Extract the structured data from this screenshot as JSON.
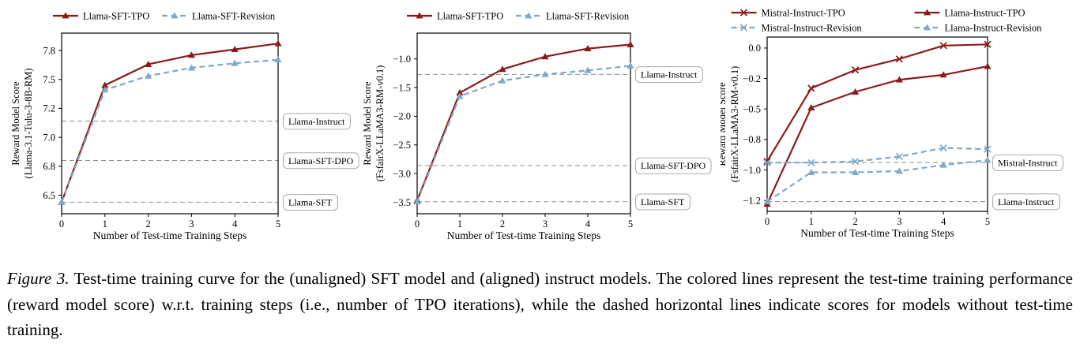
{
  "figure": {
    "caption_label": "Figure 3.",
    "caption_text": "Test-time training curve for the (unaligned) SFT model and (aligned) instruct models. The colored lines represent the test-time training performance (reward model score) w.r.t. training steps (i.e., number of TPO iterations), while the dashed horizontal lines indicate scores for models without test-time training."
  },
  "colors": {
    "tpo_red": "#8b1b1b",
    "revision_blue": "#7fa8c9",
    "baseline_gray": "#8f8f8f",
    "box_border": "#aaaaaa",
    "axis": "#000000"
  },
  "chart_data": [
    {
      "type": "line",
      "title": "",
      "xlabel": "Number of Test-time Training Steps",
      "ylabel_line1": "Reward Model Score",
      "ylabel_line2": "(Llama-3.1-Tulu-3-8B-RM)",
      "x": [
        0,
        1,
        2,
        3,
        4,
        5
      ],
      "xtick_labels": [
        "0",
        "1",
        "2",
        "3",
        "4",
        "5"
      ],
      "xlim": [
        0,
        5
      ],
      "ylim": [
        6.34,
        7.9
      ],
      "yticks": {
        "values": [
          7.75,
          7.5,
          7.25,
          7.0,
          6.75,
          6.5
        ],
        "labels": [
          "7.8",
          "7.5",
          "7.2",
          "7.0",
          "6.8",
          "6.5"
        ]
      },
      "grid": false,
      "legend_position": "above",
      "series": [
        {
          "name": "Llama-SFT-TPO",
          "color": "red",
          "style": "solid",
          "marker": "triangle",
          "values": [
            6.44,
            7.45,
            7.63,
            7.71,
            7.76,
            7.81
          ]
        },
        {
          "name": "Llama-SFT-Revision",
          "color": "blue",
          "style": "dashed",
          "marker": "triangle",
          "values": [
            6.44,
            7.41,
            7.53,
            7.6,
            7.64,
            7.67
          ]
        }
      ],
      "baselines": [
        {
          "label": "Llama-Instruct",
          "value": 7.14
        },
        {
          "label": "Llama-SFT-DPO",
          "value": 6.8
        },
        {
          "label": "Llama-SFT",
          "value": 6.44
        }
      ]
    },
    {
      "type": "line",
      "title": "",
      "xlabel": "Number of Test-time Training Steps",
      "ylabel_line1": "Reward Model Score",
      "ylabel_line2": "(FsfairX-LLaMA3-RM-v0.1)",
      "x": [
        0,
        1,
        2,
        3,
        4,
        5
      ],
      "xtick_labels": [
        "0",
        "1",
        "2",
        "3",
        "4",
        "5"
      ],
      "xlim": [
        0,
        5
      ],
      "ylim": [
        -3.7,
        -0.55
      ],
      "yticks": {
        "values": [
          -1.0,
          -1.5,
          -2.0,
          -2.5,
          -3.0,
          -3.5
        ],
        "labels": [
          "−1.0",
          "−1.5",
          "−2.0",
          "−2.5",
          "−3.0",
          "−3.5"
        ]
      },
      "grid": false,
      "legend_position": "above",
      "series": [
        {
          "name": "Llama-SFT-TPO",
          "color": "red",
          "style": "solid",
          "marker": "triangle",
          "values": [
            -3.47,
            -1.59,
            -1.18,
            -0.96,
            -0.82,
            -0.75
          ]
        },
        {
          "name": "Llama-SFT-Revision",
          "color": "blue",
          "style": "dashed",
          "marker": "triangle",
          "values": [
            -3.49,
            -1.65,
            -1.38,
            -1.27,
            -1.2,
            -1.12
          ]
        }
      ],
      "baselines": [
        {
          "label": "Llama-Instruct",
          "value": -1.27
        },
        {
          "label": "Llama-SFT-DPO",
          "value": -2.86
        },
        {
          "label": "Llama-SFT",
          "value": -3.49
        }
      ]
    },
    {
      "type": "line",
      "title": "",
      "xlabel": "Number of Test-time Training Steps",
      "ylabel_line1": "Reward Model Score",
      "ylabel_line2": "(FsfairX-LLaMA3-RM-v0.1)",
      "x": [
        0,
        1,
        2,
        3,
        4,
        5
      ],
      "xtick_labels": [
        "0",
        "1",
        "2",
        "3",
        "4",
        "5"
      ],
      "xlim": [
        0,
        5
      ],
      "ylim": [
        -1.34,
        0.09
      ],
      "yticks": {
        "values": [
          0.0,
          -0.25,
          -0.5,
          -0.75,
          -1.0,
          -1.25
        ],
        "labels": [
          "0.0",
          "−0.2",
          "−0.5",
          "−0.8",
          "−1.0",
          "−1.2"
        ]
      },
      "grid": false,
      "legend_position": "above",
      "series": [
        {
          "name": "Mistral-Instruct-TPO",
          "color": "red",
          "style": "solid",
          "marker": "x",
          "values": [
            -0.93,
            -0.33,
            -0.18,
            -0.09,
            0.02,
            0.03
          ]
        },
        {
          "name": "Llama-Instruct-TPO",
          "color": "red",
          "style": "solid",
          "marker": "triangle",
          "values": [
            -1.28,
            -0.49,
            -0.36,
            -0.26,
            -0.22,
            -0.15
          ]
        },
        {
          "name": "Mistral-Instruct-Revision",
          "color": "blue",
          "style": "dashed",
          "marker": "x",
          "values": [
            -0.94,
            -0.94,
            -0.93,
            -0.89,
            -0.82,
            -0.83
          ]
        },
        {
          "name": "Llama-Instruct-Revision",
          "color": "blue",
          "style": "dashed",
          "marker": "triangle",
          "values": [
            -1.26,
            -1.02,
            -1.02,
            -1.01,
            -0.96,
            -0.92
          ]
        }
      ],
      "baselines": [
        {
          "label": "Mistral-Instruct",
          "value": -0.94
        },
        {
          "label": "Llama-Instruct",
          "value": -1.26
        }
      ]
    }
  ]
}
